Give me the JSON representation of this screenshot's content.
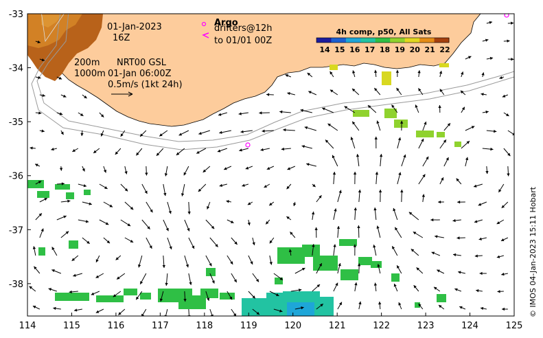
{
  "map": {
    "x_axis": {
      "min": 114,
      "max": 125,
      "ticks": [
        "114",
        "115",
        "116",
        "117",
        "118",
        "119",
        "120",
        "121",
        "122",
        "123",
        "124",
        "125"
      ]
    },
    "y_axis": {
      "min": -38.6,
      "max": -33,
      "ticks": [
        "-33",
        "-34",
        "-35",
        "-36",
        "-37",
        "-38"
      ]
    },
    "annotations": {
      "date": "01-Jan-2023",
      "hour": "16Z",
      "argo_label": "Argo",
      "drifters_label": "drifters@12h",
      "drifters_to": "to 01/01 00Z",
      "isobath_200": "200m",
      "isobath_1000": "1000m",
      "product": "NRT00 GSL",
      "product_time": "01-Jan 06:00Z",
      "scale_label": "0.5m/s (1kt 24h)"
    },
    "colorbar": {
      "title": "4h comp, p50, All Sats",
      "labels": [
        "14",
        "15",
        "16",
        "17",
        "18",
        "19",
        "20",
        "21",
        "22"
      ],
      "colors": [
        "#1c1c9c",
        "#1c5fd0",
        "#1ea6d8",
        "#22c3a2",
        "#2fbf45",
        "#8fd22e",
        "#e1d81e",
        "#e58c16",
        "#a4400e"
      ]
    },
    "credit": "© IMOS 04-Jan-2023 15:11 Hobart",
    "colors": {
      "land": "#fdcc9c",
      "argo": "#ff00ff",
      "isobath": "#999999"
    }
  }
}
